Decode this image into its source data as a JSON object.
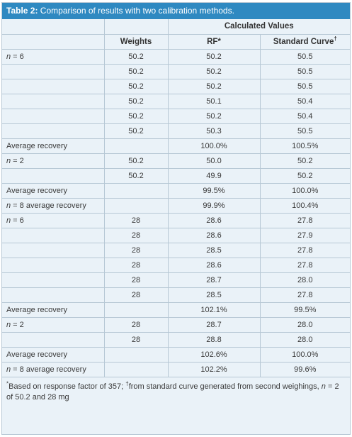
{
  "title": {
    "label": "Table 2:",
    "text": " Comparison of results with two calibration methods."
  },
  "headers": {
    "group": "Calculated Values",
    "weights": "Weights",
    "rf": "RF*",
    "standard_curve": "Standard Curve",
    "standard_curve_mark": "†"
  },
  "rows": [
    {
      "label_n": "n",
      "label_rest": " = 6",
      "weights": "50.2",
      "rf": "50.2",
      "sc": "50.5"
    },
    {
      "label_n": "",
      "label_rest": "",
      "weights": "50.2",
      "rf": "50.2",
      "sc": "50.5"
    },
    {
      "label_n": "",
      "label_rest": "",
      "weights": "50.2",
      "rf": "50.2",
      "sc": "50.5"
    },
    {
      "label_n": "",
      "label_rest": "",
      "weights": "50.2",
      "rf": "50.1",
      "sc": "50.4"
    },
    {
      "label_n": "",
      "label_rest": "",
      "weights": "50.2",
      "rf": "50.2",
      "sc": "50.4"
    },
    {
      "label_n": "",
      "label_rest": "",
      "weights": "50.2",
      "rf": "50.3",
      "sc": "50.5"
    },
    {
      "label_n": "",
      "label_rest": "Average recovery",
      "weights": "",
      "rf": "100.0%",
      "sc": "100.5%"
    },
    {
      "label_n": "n",
      "label_rest": " = 2",
      "weights": "50.2",
      "rf": "50.0",
      "sc": "50.2"
    },
    {
      "label_n": "",
      "label_rest": "",
      "weights": "50.2",
      "rf": "49.9",
      "sc": "50.2"
    },
    {
      "label_n": "",
      "label_rest": "Average recovery",
      "weights": "",
      "rf": "99.5%",
      "sc": "100.0%"
    },
    {
      "label_n": "n",
      "label_rest": " = 8 average recovery",
      "weights": "",
      "rf": "99.9%",
      "sc": "100.4%"
    },
    {
      "label_n": "n",
      "label_rest": " = 6",
      "weights": "28",
      "rf": "28.6",
      "sc": "27.8"
    },
    {
      "label_n": "",
      "label_rest": "",
      "weights": "28",
      "rf": "28.6",
      "sc": "27.9"
    },
    {
      "label_n": "",
      "label_rest": "",
      "weights": "28",
      "rf": "28.5",
      "sc": "27.8"
    },
    {
      "label_n": "",
      "label_rest": "",
      "weights": "28",
      "rf": "28.6",
      "sc": "27.8"
    },
    {
      "label_n": "",
      "label_rest": "",
      "weights": "28",
      "rf": "28.7",
      "sc": "28.0"
    },
    {
      "label_n": "",
      "label_rest": "",
      "weights": "28",
      "rf": "28.5",
      "sc": "27.8"
    },
    {
      "label_n": "",
      "label_rest": "Average recovery",
      "weights": "",
      "rf": "102.1%",
      "sc": "99.5%"
    },
    {
      "label_n": "n",
      "label_rest": " = 2",
      "weights": "28",
      "rf": "28.7",
      "sc": "28.0"
    },
    {
      "label_n": "",
      "label_rest": "",
      "weights": "28",
      "rf": "28.8",
      "sc": "28.0"
    },
    {
      "label_n": "",
      "label_rest": "Average recovery",
      "weights": "",
      "rf": "102.6%",
      "sc": "100.0%"
    },
    {
      "label_n": "n",
      "label_rest": " = 8 average recovery",
      "weights": "",
      "rf": "102.2%",
      "sc": "99.6%"
    }
  ],
  "footnote": {
    "star": "*",
    "part1": "Based on response factor of 357; ",
    "dagger": "†",
    "part2": "from standard curve generated from second weighings, ",
    "n": "n",
    "part3": " = 2 of 50.2 and 28 mg"
  }
}
